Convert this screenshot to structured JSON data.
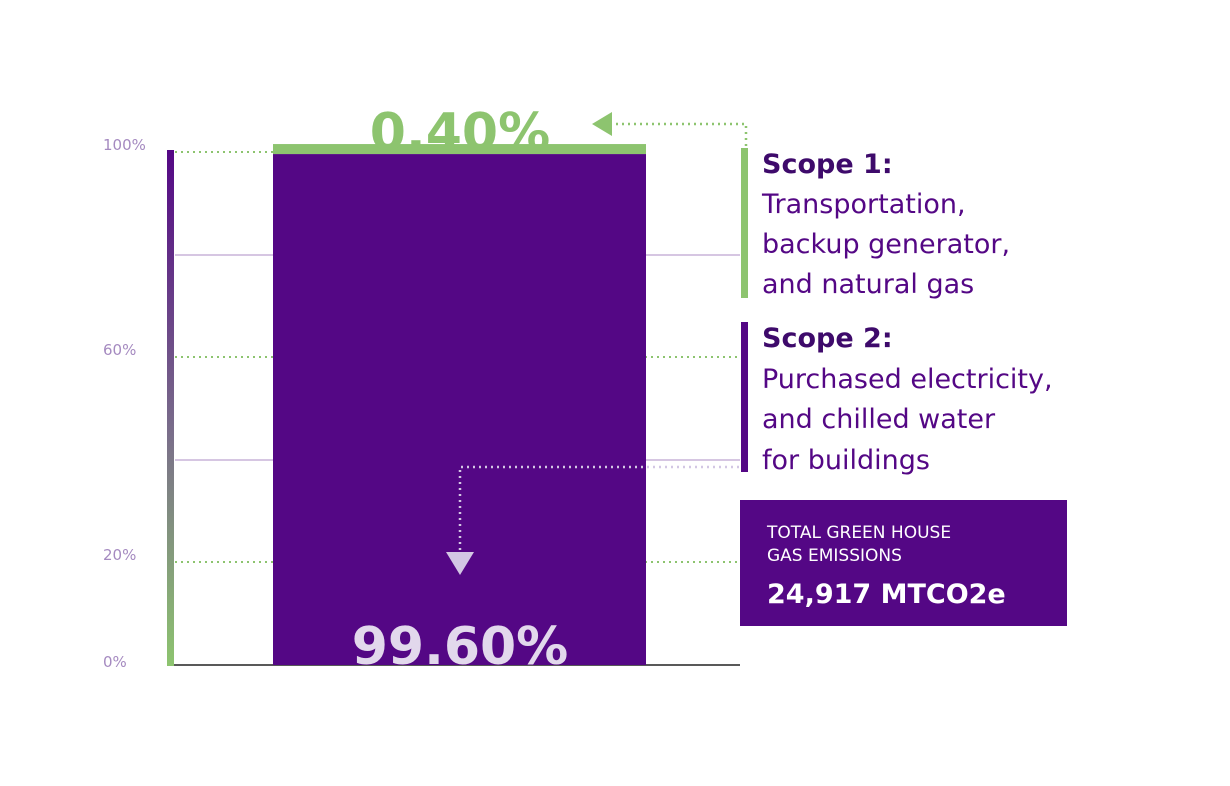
{
  "colors": {
    "purple": "#540785",
    "green": "#8dc46f",
    "light_purple": "#c8b4d9",
    "tick_text": "#a58ac0",
    "arrow_down": "#d3c7e4",
    "white": "#ffffff"
  },
  "chart_data": {
    "type": "bar",
    "stacked": true,
    "categories": [
      ""
    ],
    "series": [
      {
        "name": "Scope 2",
        "values": [
          99.6
        ],
        "color": "#540785"
      },
      {
        "name": "Scope 1",
        "values": [
          0.4
        ],
        "color": "#8dc46f"
      }
    ],
    "ylim": [
      0,
      100
    ],
    "y_tick_labels": [
      "100%",
      "60%",
      "20%",
      "0%"
    ],
    "data_labels": {
      "scope1": "0.40%",
      "scope2": "99.60%"
    },
    "legend": {
      "scope1": {
        "title": "Scope 1:",
        "lines": [
          "Transportation,",
          "backup generator,",
          "and natural gas"
        ]
      },
      "scope2": {
        "title": "Scope 2:",
        "lines": [
          "Purchased electricity,",
          "and chilled water",
          "for buildings"
        ]
      }
    },
    "total_box": {
      "lines": [
        "TOTAL GREEN HOUSE",
        "GAS EMISSIONS"
      ],
      "value": "24,917 MTCO2e"
    }
  }
}
